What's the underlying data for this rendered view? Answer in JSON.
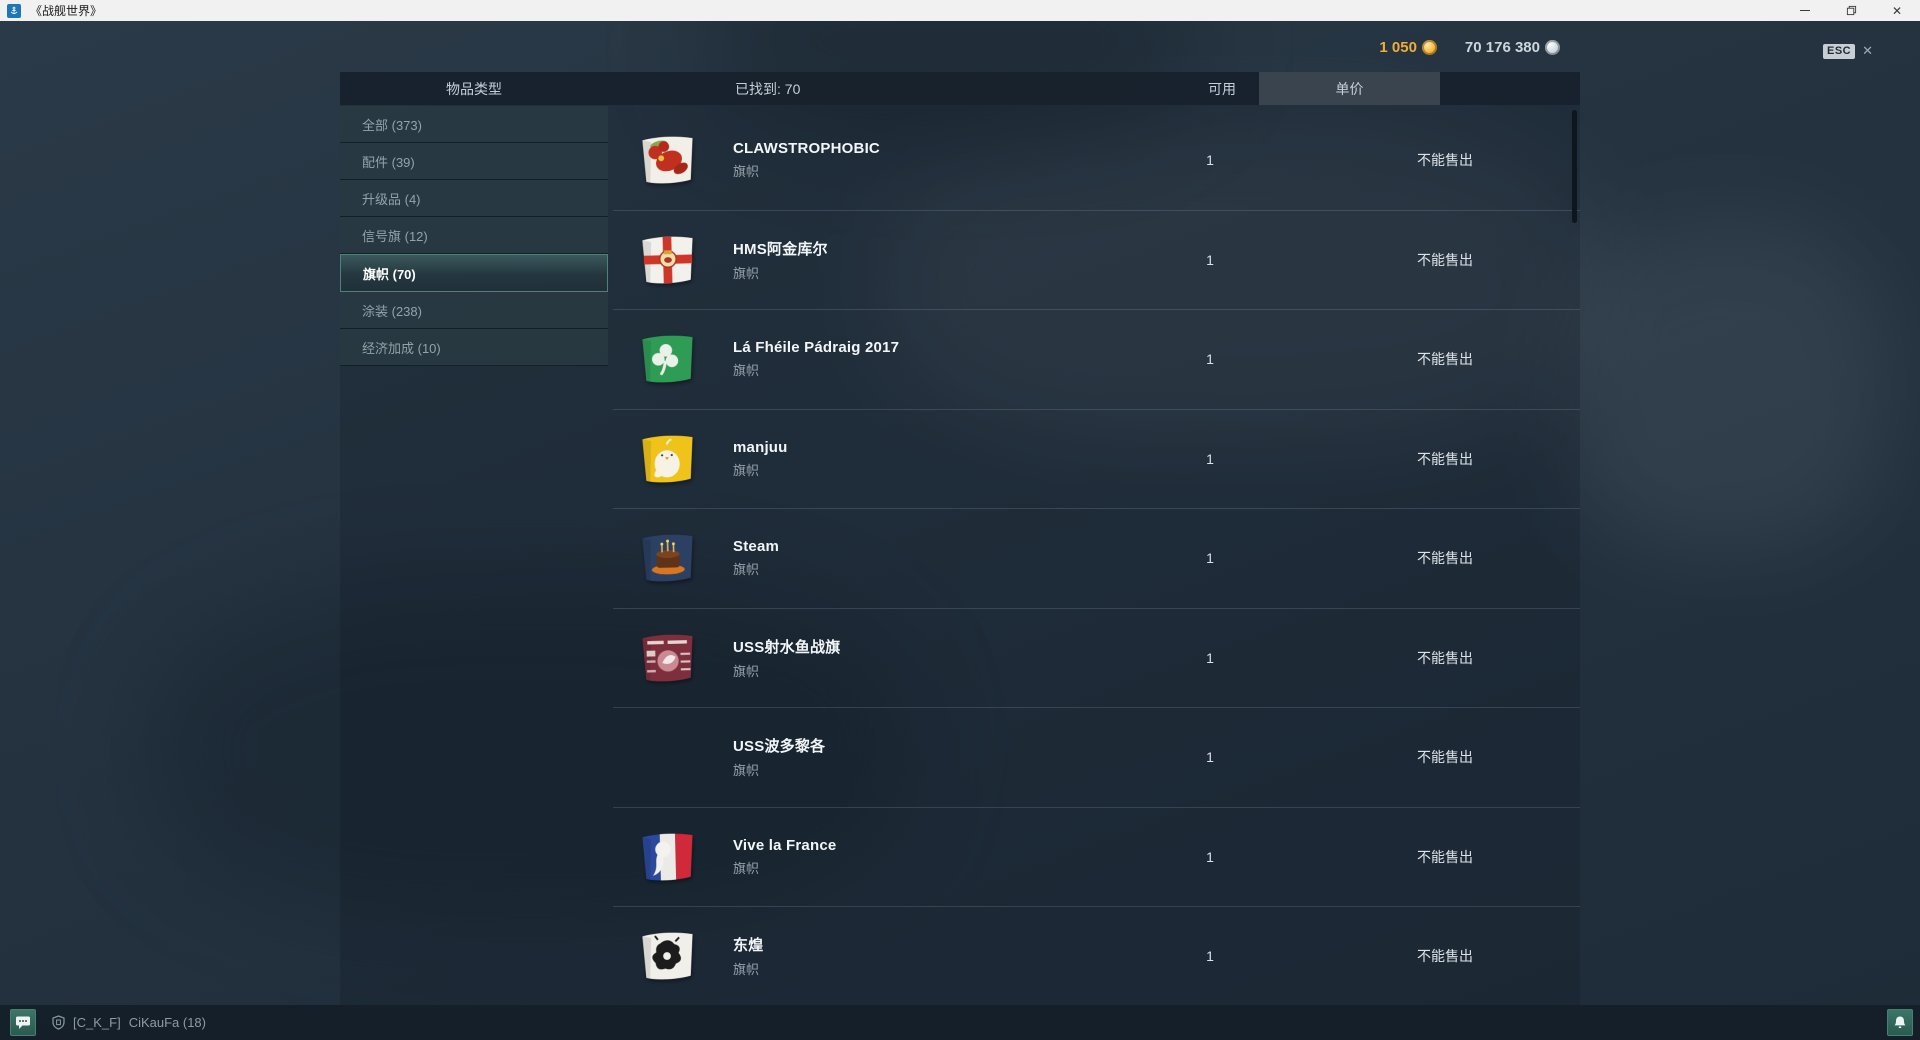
{
  "window": {
    "title": "《战舰世界》",
    "logo_icon": "anchor-icon",
    "controls": {
      "minimize_icon": "minimize-icon",
      "restore_icon": "restore-icon",
      "close_icon": "close-icon",
      "close_glyph": "✕"
    }
  },
  "topbar": {
    "gold_amount": "1 050",
    "gold_icon": "gold-coin-icon",
    "credits_amount": "70 176 380",
    "credits_icon": "silver-coin-icon",
    "esc_label": "ESC",
    "esc_close_glyph": "✕"
  },
  "header": {
    "item_type": "物品类型",
    "found": "已找到:  70",
    "available": "可用",
    "unit_price": "单价"
  },
  "sidebar": {
    "items": [
      {
        "label": "全部 (373)",
        "selected": false
      },
      {
        "label": "配件 (39)",
        "selected": false
      },
      {
        "label": "升级品 (4)",
        "selected": false
      },
      {
        "label": "信号旗 (12)",
        "selected": false
      },
      {
        "label": "旗帜 (70)",
        "selected": true
      },
      {
        "label": "涂装 (238)",
        "selected": false
      },
      {
        "label": "经济加成 (10)",
        "selected": false
      }
    ]
  },
  "list": {
    "rows": [
      {
        "title": "CLAWSTROPHOBIC",
        "subtitle": "旗帜",
        "count": "1",
        "price": "不能售出",
        "flag": "clawstrophobic"
      },
      {
        "title": "HMS阿金库尔",
        "subtitle": "旗帜",
        "count": "1",
        "price": "不能售出",
        "flag": "hms-agincourt"
      },
      {
        "title": "Lá Fhéile Pádraig 2017",
        "subtitle": "旗帜",
        "count": "1",
        "price": "不能售出",
        "flag": "padraig"
      },
      {
        "title": "manjuu",
        "subtitle": "旗帜",
        "count": "1",
        "price": "不能售出",
        "flag": "manjuu"
      },
      {
        "title": "Steam",
        "subtitle": "旗帜",
        "count": "1",
        "price": "不能售出",
        "flag": "steam"
      },
      {
        "title": "USS射水鱼战旗",
        "subtitle": "旗帜",
        "count": "1",
        "price": "不能售出",
        "flag": "uss-archerfish"
      },
      {
        "title": "USS波多黎各",
        "subtitle": "旗帜",
        "count": "1",
        "price": "不能售出",
        "flag": "none"
      },
      {
        "title": "Vive la France",
        "subtitle": "旗帜",
        "count": "1",
        "price": "不能售出",
        "flag": "vive-la-france"
      },
      {
        "title": "东煌",
        "subtitle": "旗帜",
        "count": "1",
        "price": "不能售出",
        "flag": "donghuang"
      }
    ]
  },
  "footer": {
    "chat_icon": "chat-bubble-icon",
    "clan_icon": "clan-shield-icon",
    "clan_tag": "[C_K_F]",
    "player_name": "CiKauFa (18)",
    "bell_icon": "notification-bell-icon"
  }
}
